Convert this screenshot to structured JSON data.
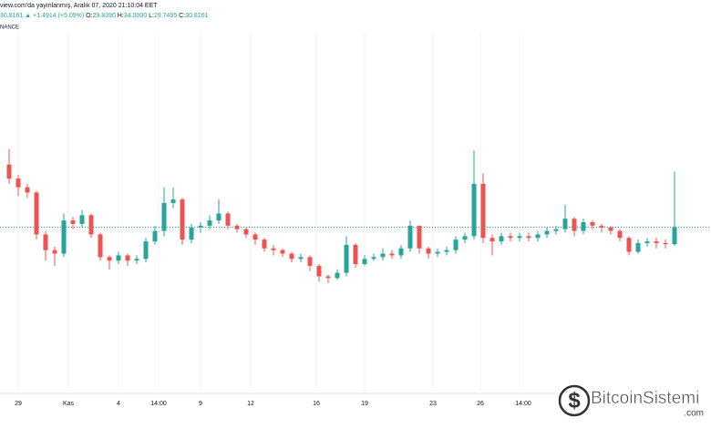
{
  "header": {
    "published": "view.com'da yayınlanmış, Aralık 07, 2020 21:10:04 EET",
    "last": "30.8161",
    "change": "▲ +1.4914 (+5.09%)",
    "o_label": "O:",
    "o_value": "29.8390",
    "h_label": "H:",
    "h_value": "34.0000",
    "l_label": "L:",
    "l_value": "29.7495",
    "c_label": "C:",
    "c_value": "30.8161",
    "exchange": "NANCE"
  },
  "watermark": {
    "brand": "BitcoinSistemi",
    "domain": ".com"
  },
  "chart_data": {
    "type": "candlestick",
    "up_color": "#26a69a",
    "down_color": "#ef5350",
    "ylim": [
      21.4,
      42
    ],
    "xlim": [
      -1,
      77
    ],
    "xticks": [
      {
        "value": 1,
        "label": "29"
      },
      {
        "value": 6.5,
        "label": "Kas"
      },
      {
        "value": 12,
        "label": "4"
      },
      {
        "value": 16.4,
        "label": "14:00"
      },
      {
        "value": 21,
        "label": "9"
      },
      {
        "value": 26.5,
        "label": "12"
      },
      {
        "value": 33.7,
        "label": "16"
      },
      {
        "value": 39,
        "label": "19"
      },
      {
        "value": 46.5,
        "label": "23"
      },
      {
        "value": 51.7,
        "label": "26"
      },
      {
        "value": 56.4,
        "label": "14:00"
      }
    ],
    "grid": true,
    "open": [
      34.4,
      33.6,
      33.1,
      32.8,
      30.4,
      29.5,
      29.3,
      31.2,
      31.0,
      31.5,
      30.4,
      29.1,
      28.9,
      29.2,
      28.9,
      29.0,
      30.0,
      30.6,
      32.2,
      32.4,
      30.1,
      30.8,
      30.9,
      31.2,
      31.6,
      30.9,
      30.7,
      30.4,
      30.1,
      29.6,
      29.5,
      29.3,
      29.0,
      29.1,
      28.6,
      28.0,
      27.9,
      28.2,
      29.8,
      28.7,
      29.0,
      29.1,
      29.3,
      29.2,
      29.6,
      30.9,
      29.6,
      29.3,
      29.4,
      29.5,
      30.1,
      30.3,
      33.3,
      30.2,
      30.0,
      30.3,
      30.2,
      30.3,
      30.2,
      30.4,
      30.6,
      30.7,
      31.3,
      30.6,
      31.1,
      30.9,
      30.8,
      30.6,
      30.2,
      29.4,
      29.9,
      30.0,
      29.9,
      29.839
    ],
    "high": [
      35.3,
      33.8,
      33.3,
      32.9,
      30.6,
      29.7,
      31.6,
      31.4,
      31.8,
      31.6,
      30.5,
      29.2,
      29.4,
      29.3,
      29.2,
      30.2,
      30.9,
      33.1,
      33.1,
      32.5,
      31.0,
      31.1,
      31.5,
      32.4,
      31.7,
      31.0,
      30.8,
      30.5,
      30.2,
      29.8,
      29.6,
      29.4,
      29.3,
      29.2,
      28.7,
      28.1,
      28.4,
      30.3,
      29.9,
      29.2,
      29.3,
      29.6,
      29.5,
      29.8,
      31.2,
      30.9,
      29.7,
      29.6,
      29.7,
      30.3,
      30.5,
      35.2,
      33.9,
      30.4,
      30.5,
      30.5,
      30.5,
      30.5,
      30.6,
      30.8,
      30.9,
      32.1,
      31.4,
      31.3,
      31.2,
      31.0,
      30.9,
      30.7,
      30.3,
      30.1,
      30.2,
      30.2,
      30.1,
      34.0
    ],
    "low": [
      33.3,
      32.6,
      32.5,
      30.1,
      28.9,
      28.6,
      29.1,
      30.7,
      30.8,
      30.2,
      28.9,
      28.4,
      28.7,
      28.6,
      28.7,
      28.8,
      29.8,
      30.3,
      31.9,
      29.8,
      29.9,
      30.5,
      30.7,
      31.0,
      30.7,
      30.5,
      30.2,
      29.8,
      29.4,
      29.2,
      29.1,
      28.8,
      28.8,
      28.3,
      27.7,
      27.6,
      27.8,
      28.0,
      28.5,
      28.6,
      28.9,
      28.9,
      29.0,
      29.0,
      29.4,
      29.3,
      29.0,
      29.1,
      29.2,
      29.3,
      29.9,
      30.1,
      29.9,
      29.2,
      29.8,
      30.0,
      30.0,
      30.0,
      30.0,
      30.2,
      30.4,
      30.5,
      30.3,
      30.4,
      30.7,
      30.5,
      30.4,
      30.0,
      29.2,
      29.3,
      29.7,
      29.6,
      29.6,
      29.7495
    ],
    "close": [
      33.6,
      33.1,
      32.8,
      30.4,
      29.5,
      29.3,
      31.2,
      31.0,
      31.5,
      30.4,
      29.1,
      28.9,
      29.2,
      28.9,
      29.0,
      30.0,
      30.6,
      32.2,
      32.4,
      30.1,
      30.8,
      30.9,
      31.2,
      31.6,
      30.9,
      30.7,
      30.4,
      30.1,
      29.6,
      29.5,
      29.3,
      29.0,
      29.1,
      28.6,
      28.0,
      27.9,
      28.2,
      29.8,
      28.7,
      29.0,
      29.1,
      29.3,
      29.2,
      29.6,
      30.9,
      29.6,
      29.3,
      29.4,
      29.5,
      30.1,
      30.3,
      33.3,
      30.2,
      30.0,
      30.3,
      30.2,
      30.3,
      30.2,
      30.4,
      30.6,
      30.7,
      31.3,
      30.6,
      31.1,
      30.9,
      30.8,
      30.6,
      30.2,
      29.4,
      29.9,
      30.0,
      29.9,
      29.839,
      30.8161
    ]
  }
}
